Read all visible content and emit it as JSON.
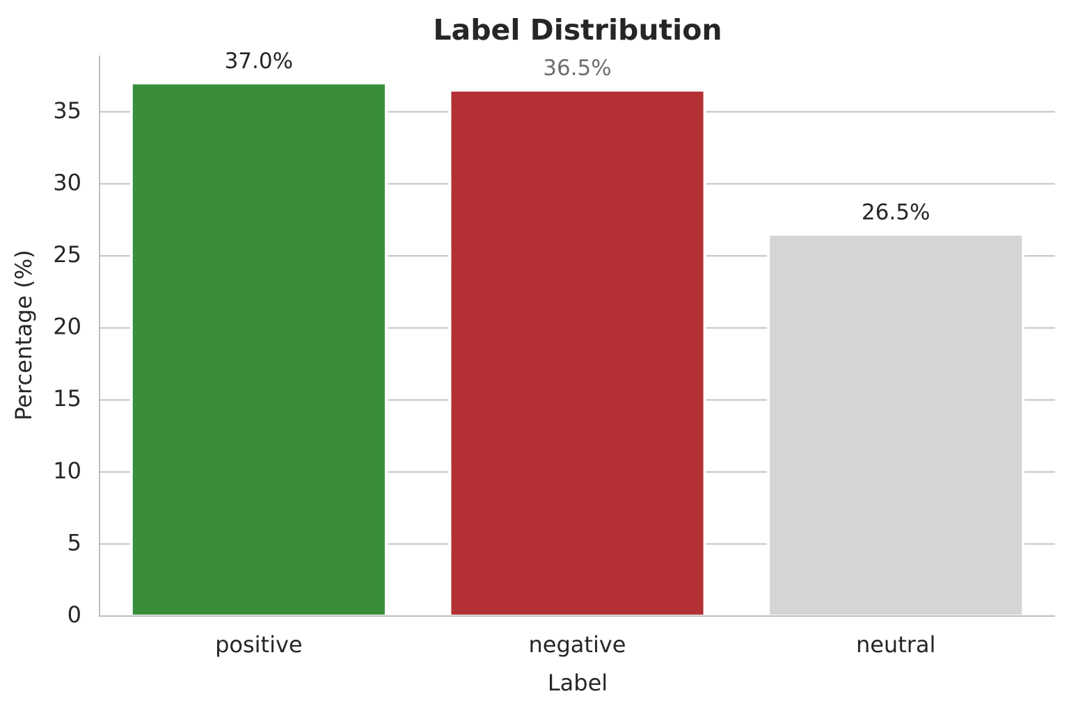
{
  "chart_data": {
    "type": "bar",
    "title": "Label Distribution",
    "x_label": "Label",
    "y_label": "Percentage (%)",
    "categories": [
      "positive",
      "negative",
      "neutral"
    ],
    "values": [
      37.0,
      36.5,
      26.5
    ],
    "value_labels": [
      "37.0%",
      "36.5%",
      "26.5%"
    ],
    "value_label_colors": [
      "#262626",
      "#6f6f6f",
      "#262626"
    ],
    "colors": [
      "#3a8e3a",
      "#b33035",
      "#d5d5d5"
    ],
    "ylim": [
      0,
      38.9
    ],
    "yticks": [
      0,
      5,
      10,
      15,
      20,
      25,
      30,
      35
    ],
    "grid": true
  }
}
